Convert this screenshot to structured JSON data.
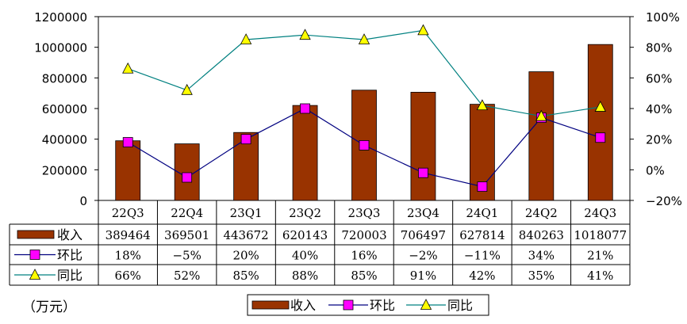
{
  "chart_data": {
    "type": "bar",
    "categories": [
      "22Q3",
      "22Q4",
      "23Q1",
      "23Q2",
      "23Q3",
      "23Q4",
      "24Q1",
      "24Q2",
      "24Q3"
    ],
    "series": [
      {
        "name": "收入",
        "kind": "bar",
        "axis": "left",
        "color": "#993300",
        "values": [
          389464,
          369501,
          443672,
          620143,
          720003,
          706497,
          627814,
          840263,
          1018077
        ],
        "table_labels": [
          "389464",
          "369501",
          "443672",
          "620143",
          "720003",
          "706497",
          "627814",
          "840263",
          "1018077"
        ]
      },
      {
        "name": "环比",
        "kind": "line",
        "axis": "right",
        "color": "#000080",
        "marker": "square",
        "marker_color": "#ff00ff",
        "values": [
          18,
          -5,
          20,
          40,
          16,
          -2,
          -11,
          34,
          21
        ],
        "table_labels": [
          "18%",
          "−5%",
          "20%",
          "40%",
          "16%",
          "−2%",
          "−11%",
          "34%",
          "21%"
        ]
      },
      {
        "name": "同比",
        "kind": "line",
        "axis": "right",
        "color": "#008080",
        "marker": "triangle",
        "marker_color": "#ffff00",
        "values": [
          66,
          52,
          85,
          88,
          85,
          91,
          42,
          35,
          41
        ],
        "table_labels": [
          "66%",
          "52%",
          "85%",
          "88%",
          "85%",
          "91%",
          "42%",
          "35%",
          "41%"
        ]
      }
    ],
    "y_left": {
      "min": 0,
      "max": 1200000,
      "ticks": [
        0,
        200000,
        400000,
        600000,
        800000,
        1000000,
        1200000
      ],
      "tick_labels": [
        "0",
        "200000",
        "400000",
        "600000",
        "800000",
        "1000000",
        "1200000"
      ]
    },
    "y_right": {
      "min": -20,
      "max": 100,
      "ticks": [
        -20,
        0,
        20,
        40,
        60,
        80,
        100
      ],
      "tick_labels": [
        "−20%",
        "0%",
        "20%",
        "40%",
        "60%",
        "80%",
        "100%"
      ]
    },
    "grid": false,
    "legend": {
      "placement": "bottom-center",
      "entries": [
        "收入",
        "环比",
        "同比"
      ]
    },
    "unit_label": "（万元）"
  }
}
